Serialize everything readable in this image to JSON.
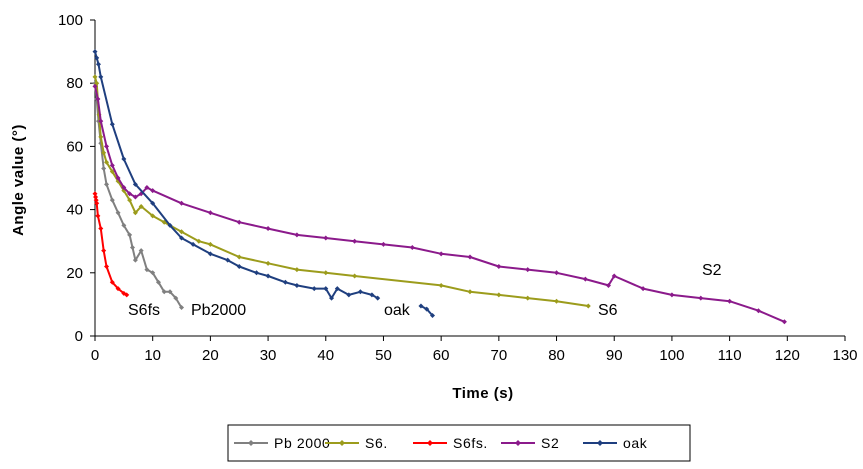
{
  "chart_data": {
    "type": "line",
    "title": "",
    "xlabel": "Time (s)",
    "ylabel": "Angle value (°)",
    "xlim": [
      0,
      130
    ],
    "ylim": [
      0,
      100
    ],
    "x_ticks": [
      0,
      10,
      20,
      30,
      40,
      50,
      60,
      70,
      80,
      90,
      100,
      110,
      120,
      130
    ],
    "y_ticks": [
      0,
      20,
      40,
      60,
      80,
      100
    ],
    "grid": false,
    "legend_position": "bottom",
    "series": [
      {
        "name": "Pb 2000",
        "color": "#808080",
        "x": [
          0,
          0.3,
          0.6,
          1,
          1.5,
          2,
          3,
          4,
          5,
          6,
          6.5,
          7,
          8,
          9,
          10,
          11,
          12,
          13,
          14,
          15
        ],
        "y": [
          80,
          75,
          68,
          61,
          53,
          48,
          43,
          39,
          35,
          32,
          28,
          24,
          27,
          21,
          20,
          17,
          14,
          14,
          12,
          9
        ]
      },
      {
        "name": "S6.",
        "color": "#9c9c1c",
        "x": [
          0,
          0.3,
          0.7,
          1,
          1.5,
          2,
          3,
          4,
          5,
          6,
          7,
          8,
          10,
          12,
          15,
          18,
          20,
          25,
          30,
          35,
          40,
          45,
          60,
          65,
          70,
          75,
          80,
          85.5
        ],
        "y": [
          82,
          80,
          70,
          63,
          58,
          55,
          52,
          49,
          46,
          43,
          39,
          41,
          38,
          36,
          33,
          30,
          29,
          25,
          23,
          21,
          20,
          19,
          16,
          14,
          13,
          12,
          11,
          9.5
        ]
      },
      {
        "name": "S6fs.",
        "color": "#ff0000",
        "x": [
          0,
          0.1,
          0.2,
          0.3,
          0.5,
          1,
          1.5,
          2,
          3,
          4,
          5,
          5.5
        ],
        "y": [
          45,
          44,
          43,
          42,
          38,
          34,
          27,
          22,
          17,
          15,
          13.5,
          13
        ]
      },
      {
        "name": "S2",
        "color": "#8b1a8b",
        "x": [
          0,
          0.5,
          1,
          2,
          3,
          4,
          5,
          6,
          7,
          8,
          9,
          10,
          15,
          20,
          25,
          30,
          35,
          40,
          45,
          50,
          55,
          60,
          65,
          70,
          75,
          80,
          85,
          89,
          90,
          95,
          100,
          105,
          110,
          115,
          119.5
        ],
        "y": [
          79,
          75,
          68,
          60,
          54,
          50,
          47,
          45,
          44,
          45,
          47,
          46,
          42,
          39,
          36,
          34,
          32,
          31,
          30,
          29,
          28,
          26,
          25,
          22,
          21,
          20,
          18,
          16,
          19,
          15,
          13,
          12,
          11,
          8,
          4.5
        ]
      },
      {
        "name": "oak",
        "color": "#1f3f7f",
        "x": [
          0,
          0.3,
          0.6,
          1,
          3,
          5,
          7,
          10,
          13,
          15,
          17,
          20,
          23,
          25,
          28,
          30,
          33,
          35,
          38,
          40,
          41,
          42,
          44,
          46,
          48,
          49
        ],
        "y": [
          90,
          88,
          86,
          82,
          67,
          56,
          48,
          42,
          35,
          31,
          29,
          26,
          24,
          22,
          20,
          19,
          17,
          16,
          15,
          15,
          12,
          15,
          13,
          14,
          13,
          12
        ]
      },
      {
        "name": "oak",
        "color": "#1f3f7f",
        "x": [
          56.5,
          57.5,
          58.5
        ],
        "y": [
          9.5,
          8.5,
          6.5
        ]
      }
    ],
    "annotations": [
      "S6fs",
      "Pb2000",
      "oak",
      "S6",
      "S2"
    ]
  }
}
